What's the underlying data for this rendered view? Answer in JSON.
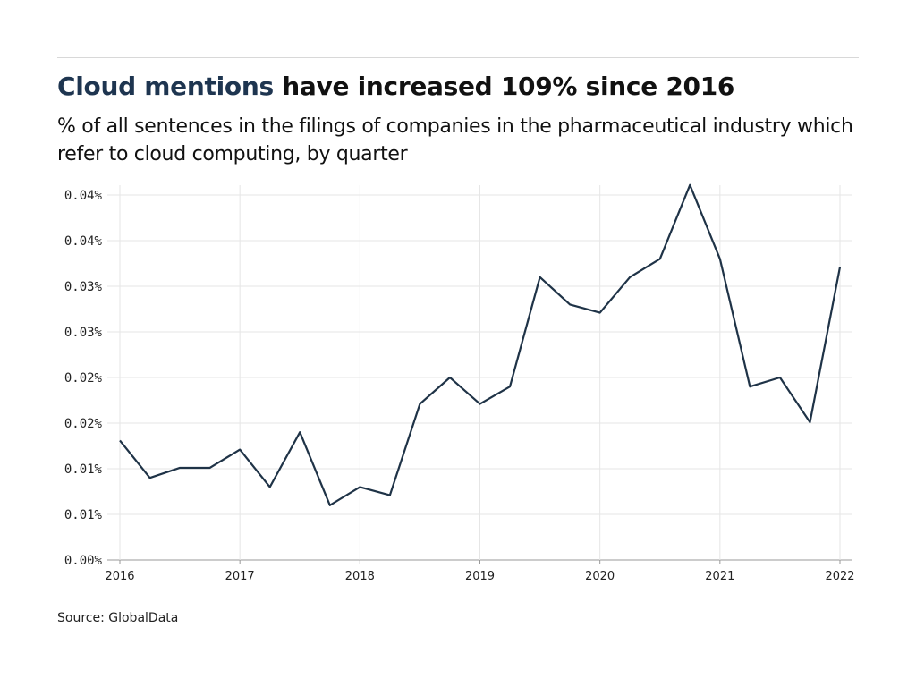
{
  "title_highlight": "Cloud mentions",
  "title_rest": " have increased 109% since 2016",
  "subtitle": "% of all sentences in the filings of companies in the pharmaceutical industry which refer to cloud computing, by quarter",
  "source": "Source: GlobalData",
  "colors": {
    "line": "#1f3347",
    "title_highlight": "#1e3550",
    "grid": "#e6e6e6"
  },
  "chart_data": {
    "type": "line",
    "title": "Cloud mentions have increased 109% since 2016",
    "xlabel": "",
    "ylabel": "",
    "grid": true,
    "ylim": [
      0,
      0.04
    ],
    "y_ticks": [
      {
        "value": 0,
        "label": "0.00%"
      },
      {
        "value": 0.005,
        "label": "0.01%"
      },
      {
        "value": 0.01,
        "label": "0.01%"
      },
      {
        "value": 0.015,
        "label": "0.02%"
      },
      {
        "value": 0.02,
        "label": "0.02%"
      },
      {
        "value": 0.025,
        "label": "0.03%"
      },
      {
        "value": 0.03,
        "label": "0.03%"
      },
      {
        "value": 0.035,
        "label": "0.04%"
      },
      {
        "value": 0.04,
        "label": "0.04%"
      }
    ],
    "x_ticks": [
      "2016",
      "2017",
      "2018",
      "2019",
      "2020",
      "2021",
      "2022"
    ],
    "x": [
      "2016 Q1",
      "2016 Q2",
      "2016 Q3",
      "2016 Q4",
      "2017 Q1",
      "2017 Q2",
      "2017 Q3",
      "2017 Q4",
      "2018 Q1",
      "2018 Q2",
      "2018 Q3",
      "2018 Q4",
      "2019 Q1",
      "2019 Q2",
      "2019 Q3",
      "2019 Q4",
      "2020 Q1",
      "2020 Q2",
      "2020 Q3",
      "2020 Q4",
      "2021 Q1",
      "2021 Q2",
      "2021 Q3",
      "2021 Q4",
      "2022 Q1"
    ],
    "series": [
      {
        "values": [
          0.0131,
          0.009,
          0.0101,
          0.0101,
          0.0121,
          0.008,
          0.014,
          0.006,
          0.008,
          0.0071,
          0.0171,
          0.02,
          0.0171,
          0.019,
          0.031,
          0.028,
          0.0271,
          0.031,
          0.033,
          0.0411,
          0.033,
          0.019,
          0.02,
          0.0151,
          0.0321
        ]
      }
    ]
  }
}
